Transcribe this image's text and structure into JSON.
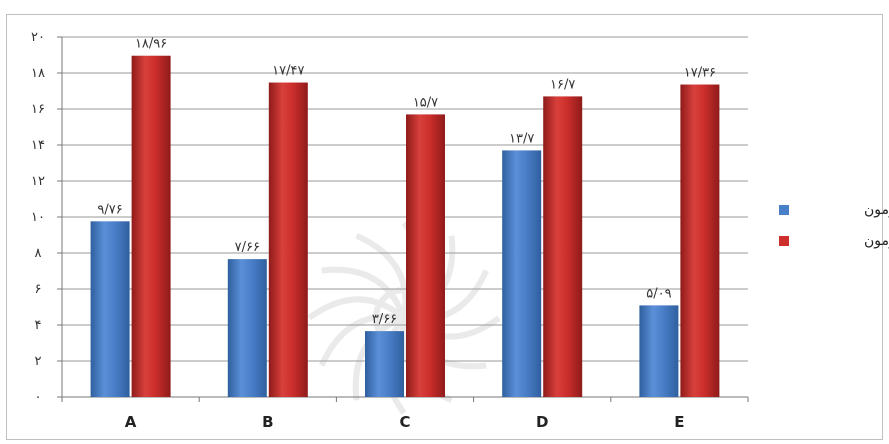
{
  "colors": {
    "pre": "#4a7fc9",
    "pre_dark": "#2f5f9f",
    "post": "#cc2f2c",
    "post_dark": "#8f1b1a",
    "grid": "#999999",
    "watermark": "#b5b5b5"
  },
  "icons": {
    "watermark": "rosette-watermark-icon"
  },
  "chart_data": {
    "type": "bar",
    "categories": [
      "A",
      "B",
      "C",
      "D",
      "E"
    ],
    "ylim": [
      0,
      20
    ],
    "yticks": [
      0,
      2,
      4,
      6,
      8,
      10,
      12,
      14,
      16,
      18,
      20
    ],
    "ytick_labels": [
      "۰",
      "۲",
      "۴",
      "۶",
      "۸",
      "۱۰",
      "۱۲",
      "۱۴",
      "۱۶",
      "۱۸",
      "۲۰"
    ],
    "grid": true,
    "legend_position": "right",
    "series": [
      {
        "name": "پیش آزمون",
        "key": "pre",
        "values": [
          9.76,
          7.66,
          3.66,
          13.7,
          5.09
        ],
        "labels": [
          "۹/۷۶",
          "۷/۶۶",
          "۳/۶۶",
          "۱۳/۷",
          "۵/۰۹"
        ]
      },
      {
        "name": "پس آزمون",
        "key": "post",
        "values": [
          18.96,
          17.47,
          15.7,
          16.7,
          17.36
        ],
        "labels": [
          "۱۸/۹۶",
          "۱۷/۴۷",
          "۱۵/۷",
          "۱۶/۷",
          "۱۷/۳۶"
        ]
      }
    ]
  }
}
